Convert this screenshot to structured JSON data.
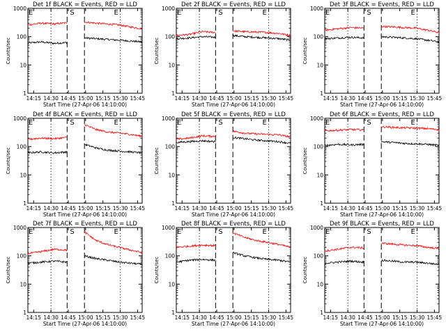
{
  "chart_data": [
    {
      "type": "line",
      "title": "Det 1f BLACK = Events, RED = LLD",
      "xlabel": "Start Time (27-Apr-06 14:10:00)",
      "ylabel": "Counts/sec",
      "y_scale": "log",
      "ylim": [
        1,
        1000
      ],
      "xlim": [
        "14:10",
        "15:49"
      ],
      "x_ticks": [
        "14:15",
        "14:30",
        "14:45",
        "15:00",
        "15:15",
        "15:30",
        "15:45"
      ],
      "y_ticks": [
        "1",
        "10",
        "100",
        "1000"
      ],
      "markers": {
        "start": "S",
        "end": "E"
      },
      "marker_lines": [
        {
          "time": "14:44",
          "style": "dashed"
        },
        {
          "time": "14:59",
          "style": "dashed"
        },
        {
          "time": "14:30",
          "style": "dotted"
        },
        {
          "time": "15:30",
          "style": "dotted"
        }
      ],
      "gap": [
        "14:44",
        "14:59"
      ],
      "series": [
        {
          "name": "Events",
          "color": "#000000",
          "before": [
            60,
            65,
            58,
            62
          ],
          "after": [
            90,
            85,
            80,
            75,
            70,
            65
          ]
        },
        {
          "name": "LLD",
          "color": "#ff0000",
          "before": [
            260,
            300,
            280,
            310
          ],
          "after": [
            330,
            300,
            280,
            260,
            220,
            190
          ]
        }
      ]
    },
    {
      "type": "line",
      "title": "Det 2f BLACK = Events, RED = LLD",
      "xlabel": "Start Time (27-Apr-06 14:10:00)",
      "ylabel": "Counts/sec",
      "y_scale": "log",
      "ylim": [
        1,
        1000
      ],
      "xlim": [
        "14:10",
        "15:49"
      ],
      "x_ticks": [
        "14:15",
        "14:30",
        "14:45",
        "15:00",
        "15:15",
        "15:30",
        "15:45"
      ],
      "y_ticks": [
        "1",
        "10",
        "100",
        "1000"
      ],
      "markers": {
        "start": "S",
        "end": "E"
      },
      "marker_lines": [
        {
          "time": "14:44",
          "style": "dashed"
        },
        {
          "time": "14:59",
          "style": "dashed"
        },
        {
          "time": "14:30",
          "style": "dotted"
        },
        {
          "time": "15:30",
          "style": "dotted"
        }
      ],
      "gap": [
        "14:44",
        "14:59"
      ],
      "series": [
        {
          "name": "Events",
          "color": "#000000",
          "before": [
            85,
            90,
            100,
            95
          ],
          "after": [
            110,
            100,
            95,
            90,
            85,
            75
          ]
        },
        {
          "name": "LLD",
          "color": "#ff0000",
          "before": [
            110,
            120,
            150,
            140
          ],
          "after": [
            160,
            150,
            145,
            140,
            130,
            110
          ]
        }
      ]
    },
    {
      "type": "line",
      "title": "Det 3f BLACK = Events, RED = LLD",
      "xlabel": "Start Time (27-Apr-06 14:10:00)",
      "ylabel": "Counts/sec",
      "y_scale": "log",
      "ylim": [
        1,
        1000
      ],
      "xlim": [
        "14:10",
        "15:49"
      ],
      "x_ticks": [
        "14:15",
        "14:30",
        "14:45",
        "15:00",
        "15:15",
        "15:30",
        "15:45"
      ],
      "y_ticks": [
        "1",
        "10",
        "100",
        "1000"
      ],
      "markers": {
        "start": "S",
        "end": "E"
      },
      "marker_lines": [
        {
          "time": "14:44",
          "style": "dashed"
        },
        {
          "time": "14:59",
          "style": "dashed"
        },
        {
          "time": "14:30",
          "style": "dotted"
        },
        {
          "time": "15:30",
          "style": "dotted"
        }
      ],
      "gap": [
        "14:44",
        "14:59"
      ],
      "series": [
        {
          "name": "Events",
          "color": "#000000",
          "before": [
            85,
            90,
            95,
            90
          ],
          "after": [
            100,
            95,
            90,
            85,
            75,
            65
          ]
        },
        {
          "name": "LLD",
          "color": "#ff0000",
          "before": [
            170,
            190,
            210,
            200
          ],
          "after": [
            230,
            220,
            210,
            200,
            170,
            140
          ]
        }
      ]
    },
    {
      "type": "line",
      "title": "Det 4f BLACK = Events, RED = LLD",
      "xlabel": "Start Time (27-Apr-06 14:10:00)",
      "ylabel": "Counts/sec",
      "y_scale": "log",
      "ylim": [
        1,
        1000
      ],
      "xlim": [
        "14:10",
        "15:49"
      ],
      "x_ticks": [
        "14:15",
        "14:30",
        "14:45",
        "15:00",
        "15:15",
        "15:30",
        "15:45"
      ],
      "y_ticks": [
        "1",
        "10",
        "100",
        "1000"
      ],
      "markers": {
        "start": "S",
        "end": "E"
      },
      "marker_lines": [
        {
          "time": "14:44",
          "style": "dashed"
        },
        {
          "time": "14:59",
          "style": "dashed"
        },
        {
          "time": "14:30",
          "style": "dotted"
        },
        {
          "time": "15:30",
          "style": "dotted"
        }
      ],
      "gap": [
        "14:44",
        "14:59"
      ],
      "series": [
        {
          "name": "Events",
          "color": "#000000",
          "before": [
            60,
            65,
            60,
            65
          ],
          "after": [
            120,
            90,
            75,
            70,
            65,
            60
          ]
        },
        {
          "name": "LLD",
          "color": "#ff0000",
          "before": [
            180,
            200,
            190,
            210
          ],
          "after": [
            600,
            400,
            330,
            300,
            270,
            230
          ]
        }
      ]
    },
    {
      "type": "line",
      "title": "Det 5f BLACK = Events, RED = LLD",
      "xlabel": "Start Time (27-Apr-06 14:10:00)",
      "ylabel": "Counts/sec",
      "y_scale": "log",
      "ylim": [
        1,
        1000
      ],
      "xlim": [
        "14:10",
        "15:49"
      ],
      "x_ticks": [
        "14:15",
        "14:30",
        "14:45",
        "15:00",
        "15:15",
        "15:30",
        "15:45"
      ],
      "y_ticks": [
        "1",
        "10",
        "100",
        "1000"
      ],
      "markers": {
        "start": "S",
        "end": "E"
      },
      "marker_lines": [
        {
          "time": "14:44",
          "style": "dashed"
        },
        {
          "time": "14:59",
          "style": "dashed"
        },
        {
          "time": "14:30",
          "style": "dotted"
        },
        {
          "time": "15:30",
          "style": "dotted"
        }
      ],
      "gap": [
        "14:44",
        "14:59"
      ],
      "series": [
        {
          "name": "Events",
          "color": "#000000",
          "before": [
            140,
            150,
            160,
            150
          ],
          "after": [
            210,
            190,
            170,
            160,
            150,
            130
          ]
        },
        {
          "name": "LLD",
          "color": "#ff0000",
          "before": [
            180,
            200,
            240,
            230
          ],
          "after": [
            350,
            300,
            280,
            270,
            260,
            220
          ]
        }
      ]
    },
    {
      "type": "line",
      "title": "Det 6f BLACK = Events, RED = LLD",
      "xlabel": "Start Time (27-Apr-06 14:10:00)",
      "ylabel": "Counts/sec",
      "y_scale": "log",
      "ylim": [
        1,
        1000
      ],
      "xlim": [
        "14:10",
        "15:49"
      ],
      "x_ticks": [
        "14:15",
        "14:30",
        "14:45",
        "15:00",
        "15:15",
        "15:30",
        "15:45"
      ],
      "y_ticks": [
        "1",
        "10",
        "100",
        "1000"
      ],
      "markers": {
        "start": "S",
        "end": "E"
      },
      "marker_lines": [
        {
          "time": "14:44",
          "style": "dashed"
        },
        {
          "time": "14:59",
          "style": "dashed"
        },
        {
          "time": "14:30",
          "style": "dotted"
        },
        {
          "time": "15:30",
          "style": "dotted"
        }
      ],
      "gap": [
        "14:44",
        "14:59"
      ],
      "series": [
        {
          "name": "Events",
          "color": "#000000",
          "before": [
            110,
            120,
            115,
            120
          ],
          "after": [
            150,
            140,
            130,
            125,
            120,
            110
          ]
        },
        {
          "name": "LLD",
          "color": "#ff0000",
          "before": [
            360,
            380,
            400,
            390
          ],
          "after": [
            500,
            480,
            460,
            450,
            430,
            400
          ]
        }
      ]
    },
    {
      "type": "line",
      "title": "Det 7f BLACK = Events, RED = LLD",
      "xlabel": "Start Time (27-Apr-06 14:10:00)",
      "ylabel": "Counts/sec",
      "y_scale": "log",
      "ylim": [
        1,
        1000
      ],
      "xlim": [
        "14:10",
        "15:49"
      ],
      "x_ticks": [
        "14:15",
        "14:30",
        "14:45",
        "15:00",
        "15:15",
        "15:30",
        "15:45"
      ],
      "y_ticks": [
        "1",
        "10",
        "100",
        "1000"
      ],
      "markers": {
        "start": "S",
        "end": "E"
      },
      "marker_lines": [
        {
          "time": "14:44",
          "style": "dashed"
        },
        {
          "time": "14:59",
          "style": "dashed"
        },
        {
          "time": "14:30",
          "style": "dotted"
        },
        {
          "time": "15:30",
          "style": "dotted"
        }
      ],
      "gap": [
        "14:44",
        "14:59"
      ],
      "series": [
        {
          "name": "Events",
          "color": "#000000",
          "before": [
            55,
            60,
            65,
            60
          ],
          "after": [
            100,
            80,
            70,
            60,
            55,
            50
          ]
        },
        {
          "name": "LLD",
          "color": "#ff0000",
          "before": [
            120,
            140,
            170,
            160
          ],
          "after": [
            700,
            350,
            250,
            200,
            160,
            130
          ]
        }
      ]
    },
    {
      "type": "line",
      "title": "Det 8f BLACK = Events, RED = LLD",
      "xlabel": "Start Time (27-Apr-06 14:10:00)",
      "ylabel": "Counts/sec",
      "y_scale": "log",
      "ylim": [
        1,
        1000
      ],
      "xlim": [
        "14:10",
        "15:49"
      ],
      "x_ticks": [
        "14:15",
        "14:30",
        "14:45",
        "15:00",
        "15:15",
        "15:30",
        "15:45"
      ],
      "y_ticks": [
        "1",
        "10",
        "100",
        "1000"
      ],
      "markers": {
        "start": "S",
        "end": "E"
      },
      "marker_lines": [
        {
          "time": "14:44",
          "style": "dashed"
        },
        {
          "time": "14:59",
          "style": "dashed"
        },
        {
          "time": "14:30",
          "style": "dotted"
        },
        {
          "time": "15:30",
          "style": "dotted"
        }
      ],
      "gap": [
        "14:44",
        "14:59"
      ],
      "series": [
        {
          "name": "Events",
          "color": "#000000",
          "before": [
            60,
            70,
            75,
            70
          ],
          "after": [
            130,
            100,
            85,
            75,
            70,
            60
          ]
        },
        {
          "name": "LLD",
          "color": "#ff0000",
          "before": [
            200,
            220,
            240,
            230
          ],
          "after": [
            650,
            450,
            350,
            300,
            250,
            200
          ]
        }
      ]
    },
    {
      "type": "line",
      "title": "Det 9f BLACK = Events, RED = LLD",
      "xlabel": "Start Time (27-Apr-06 14:10:00)",
      "ylabel": "Counts/sec",
      "y_scale": "log",
      "ylim": [
        1,
        1000
      ],
      "xlim": [
        "14:10",
        "15:49"
      ],
      "x_ticks": [
        "14:15",
        "14:30",
        "14:45",
        "15:00",
        "15:15",
        "15:30",
        "15:45"
      ],
      "y_ticks": [
        "1",
        "10",
        "100",
        "1000"
      ],
      "markers": {
        "start": "S",
        "end": "E"
      },
      "marker_lines": [
        {
          "time": "14:44",
          "style": "dashed"
        },
        {
          "time": "14:59",
          "style": "dashed"
        },
        {
          "time": "14:30",
          "style": "dotted"
        },
        {
          "time": "15:30",
          "style": "dotted"
        }
      ],
      "gap": [
        "14:44",
        "14:59"
      ],
      "series": [
        {
          "name": "Events",
          "color": "#000000",
          "before": [
            55,
            60,
            65,
            60
          ],
          "after": [
            70,
            65,
            60,
            60,
            55,
            50
          ]
        },
        {
          "name": "LLD",
          "color": "#ff0000",
          "before": [
            150,
            170,
            200,
            190
          ],
          "after": [
            280,
            260,
            240,
            230,
            200,
            180
          ]
        }
      ]
    }
  ]
}
